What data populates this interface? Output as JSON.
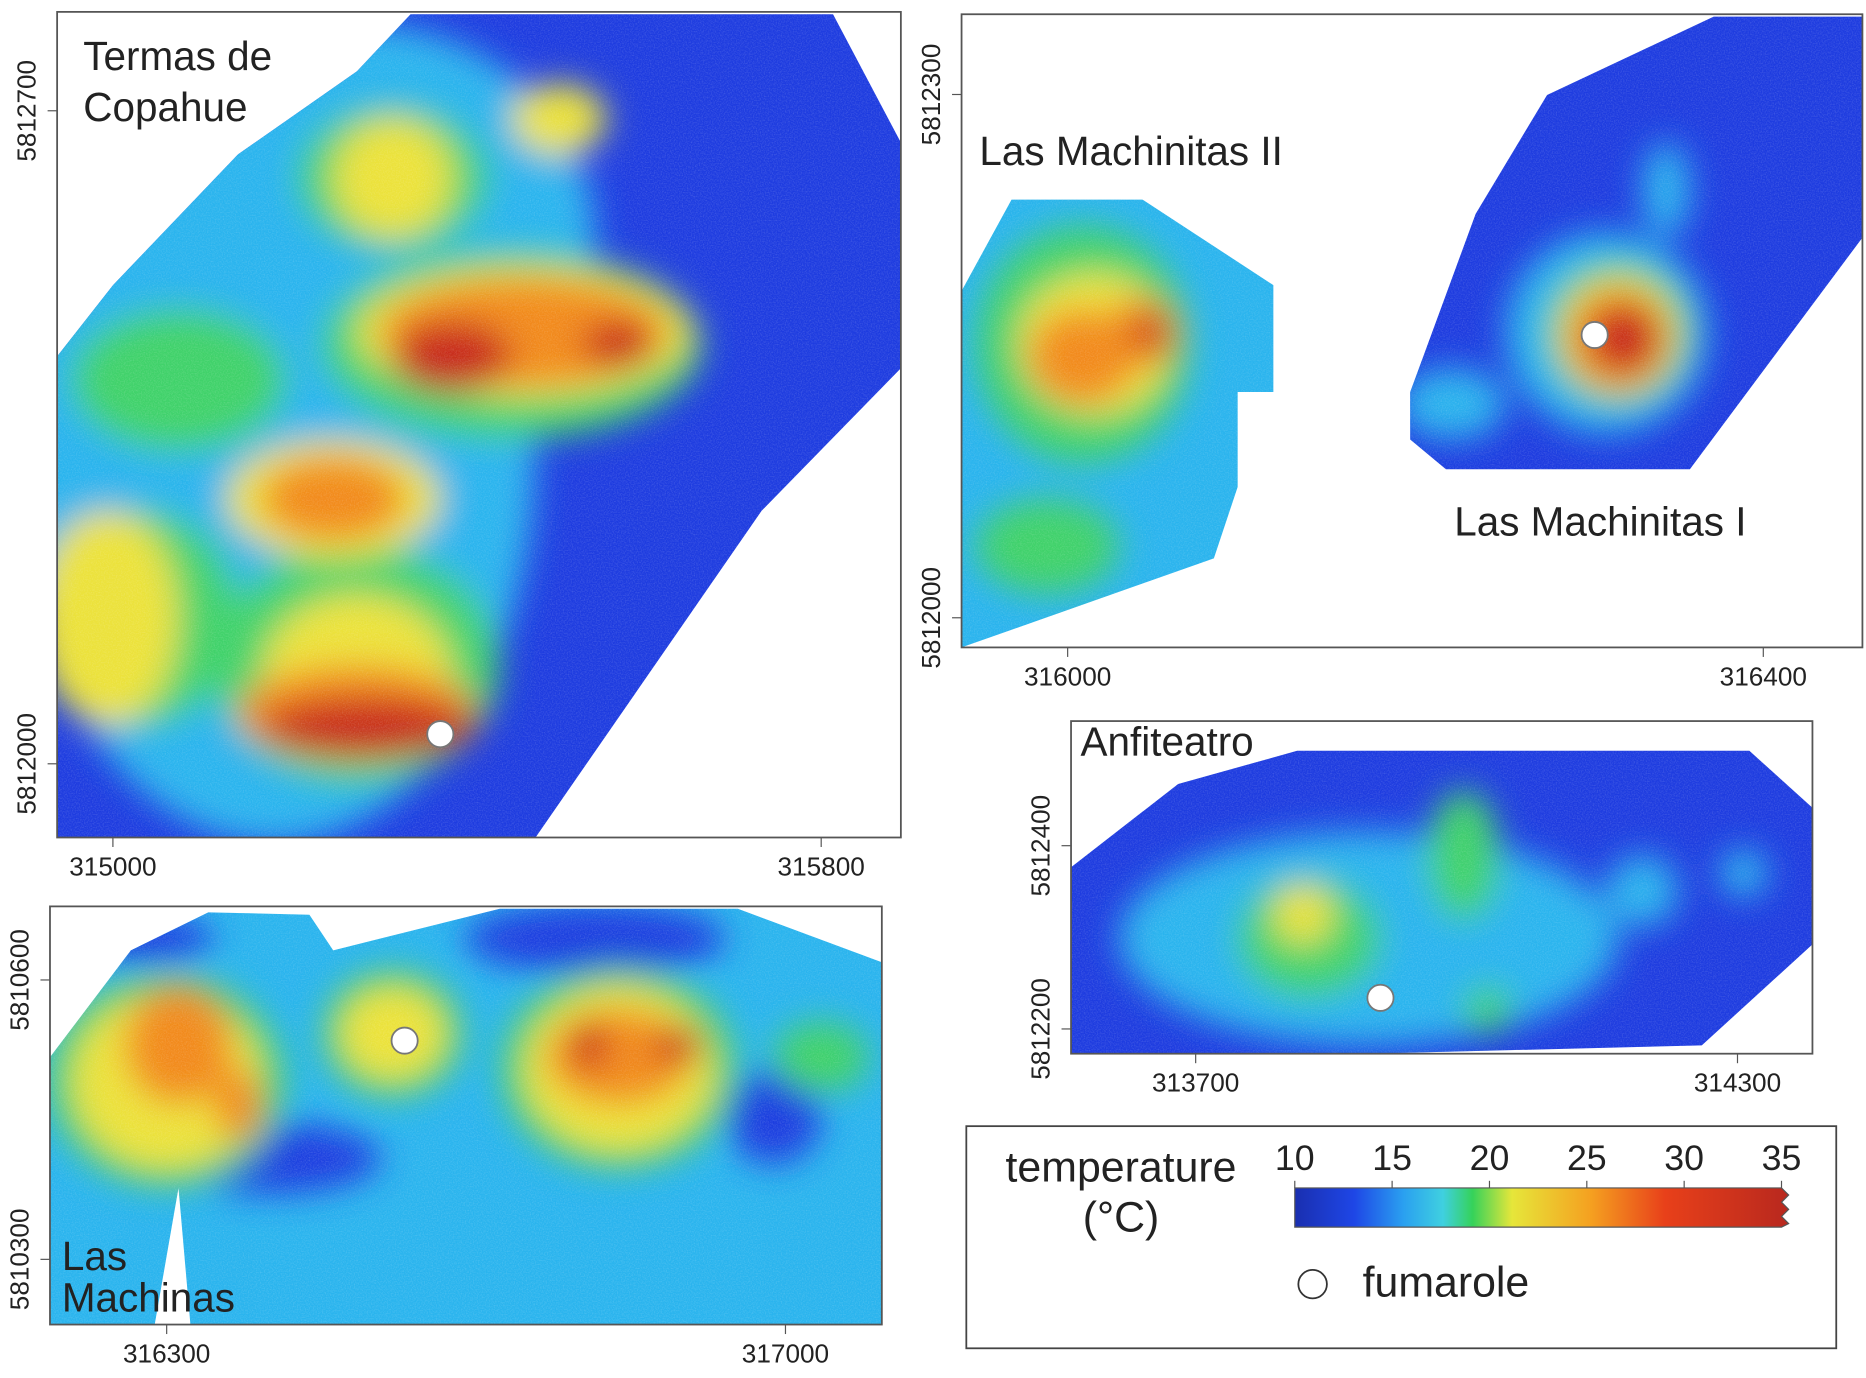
{
  "panels": [
    {
      "title": [
        "Termas de",
        "Copahue"
      ],
      "xlim": [
        314937,
        315890
      ],
      "xticks": [
        315000,
        315800
      ],
      "ylim": [
        5811921,
        5812806
      ],
      "yticks": [
        5812000,
        5812700
      ]
    },
    {
      "title": [
        "Las Machinitas II",
        "Las Machinitas I"
      ],
      "xlim": [
        315939,
        316457
      ],
      "xticks": [
        316000,
        316400
      ],
      "ylim": [
        5811983,
        5812346
      ],
      "yticks": [
        5812000,
        5812300
      ]
    },
    {
      "title": [
        "Anfiteatro"
      ],
      "xlim": [
        313562,
        314383
      ],
      "xticks": [
        313700,
        314300
      ],
      "ylim": [
        5812173,
        5812536
      ],
      "yticks": [
        5812200,
        5812400
      ]
    },
    {
      "title": [
        "Las",
        "Machinas"
      ],
      "xlim": [
        316168,
        317109
      ],
      "xticks": [
        316300,
        317000
      ],
      "ylim": [
        5810230,
        5810679
      ],
      "yticks": [
        5810300,
        5810600
      ]
    }
  ],
  "legend": {
    "title": [
      "temperature",
      "(°C)"
    ],
    "lim": [
      10,
      35
    ],
    "ticks": [
      10,
      15,
      20,
      25,
      30,
      35
    ],
    "marker": "fumarole"
  }
}
